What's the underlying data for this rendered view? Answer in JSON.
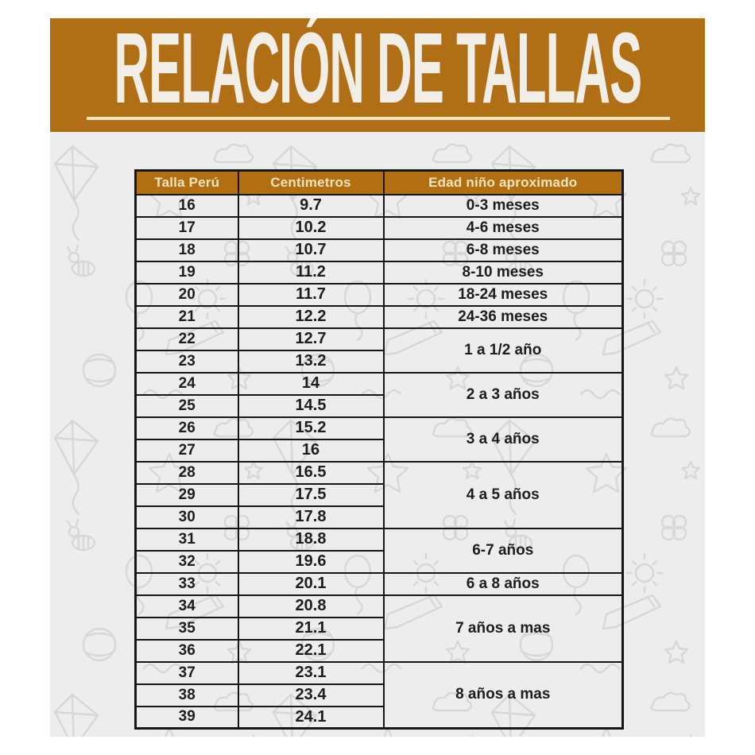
{
  "banner": {
    "title": "RELACIÓN DE TALLAS"
  },
  "table": {
    "columns": [
      "Talla Perú",
      "Centimetros",
      "Edad niño aproximado"
    ],
    "rows": [
      {
        "talla": "16",
        "cm": "9.7",
        "edad": "0-3 meses",
        "span": 1
      },
      {
        "talla": "17",
        "cm": "10.2",
        "edad": "4-6 meses",
        "span": 1
      },
      {
        "talla": "18",
        "cm": "10.7",
        "edad": "6-8 meses",
        "span": 1
      },
      {
        "talla": "19",
        "cm": "11.2",
        "edad": "8-10 meses",
        "span": 1
      },
      {
        "talla": "20",
        "cm": "11.7",
        "edad": "18-24 meses",
        "span": 1
      },
      {
        "talla": "21",
        "cm": "12.2",
        "edad": "24-36 meses",
        "span": 1
      },
      {
        "talla": "22",
        "cm": "12.7",
        "edad": "1 a 1/2 año",
        "span": 2
      },
      {
        "talla": "23",
        "cm": "13.2",
        "edad": "",
        "span": 0
      },
      {
        "talla": "24",
        "cm": "14",
        "edad": "2 a 3 años",
        "span": 2
      },
      {
        "talla": "25",
        "cm": "14.5",
        "edad": "",
        "span": 0
      },
      {
        "talla": "26",
        "cm": "15.2",
        "edad": "3 a  4 años",
        "span": 2
      },
      {
        "talla": "27",
        "cm": "16",
        "edad": "",
        "span": 0
      },
      {
        "talla": "28",
        "cm": "16.5",
        "edad": "4  a  5 años",
        "span": 3
      },
      {
        "talla": "29",
        "cm": "17.5",
        "edad": "",
        "span": 0
      },
      {
        "talla": "30",
        "cm": "17.8",
        "edad": "",
        "span": 0
      },
      {
        "talla": "31",
        "cm": "18.8",
        "edad": "6-7 años",
        "span": 2
      },
      {
        "talla": "32",
        "cm": "19.6",
        "edad": "",
        "span": 0
      },
      {
        "talla": "33",
        "cm": "20.1",
        "edad": "6 a 8 años",
        "span": 1
      },
      {
        "talla": "34",
        "cm": "20.8",
        "edad": "7 años a mas",
        "span": 3
      },
      {
        "talla": "35",
        "cm": "21.1",
        "edad": "",
        "span": 0
      },
      {
        "talla": "36",
        "cm": "22.1",
        "edad": "",
        "span": 0
      },
      {
        "talla": "37",
        "cm": "23.1",
        "edad": "8 años a mas",
        "span": 3
      },
      {
        "talla": "38",
        "cm": "23.4",
        "edad": "",
        "span": 0
      },
      {
        "talla": "39",
        "cm": "24.1",
        "edad": "",
        "span": 0
      }
    ]
  },
  "colors": {
    "banner_bg": "#b06e15",
    "banner_text": "#f1eee8",
    "underline": "#efe5c5",
    "header_bg": "#b26f12",
    "header_text": "#f2e4bd",
    "canvas_bg": "#ededed",
    "doodle_line": "#d7d7d7",
    "table_border": "#161616",
    "cell_text": "#1d1d1d"
  }
}
